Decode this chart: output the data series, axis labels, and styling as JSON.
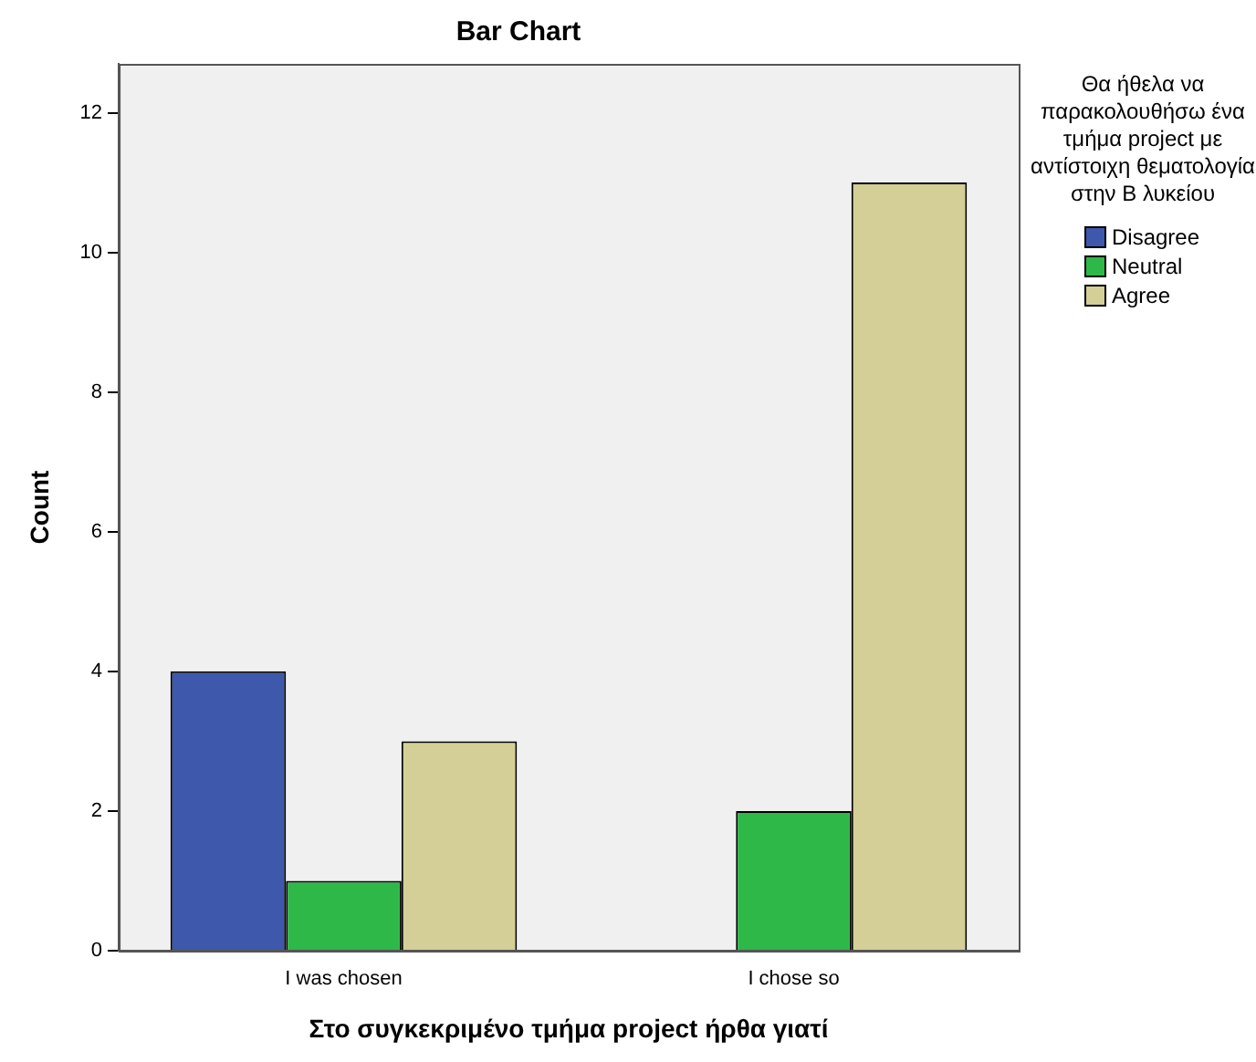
{
  "chart_data": {
    "type": "bar",
    "title": "Bar Chart",
    "xlabel": "Στο συγκεκριμένο τμήμα project ήρθα γιατί",
    "ylabel": "Count",
    "legend_title": "Θα ήθελα να παρακολουθήσω ένα τμήμα project με αντίστοιχη θεματολογία στην Β λυκείου",
    "categories": [
      "I was chosen",
      "I chose so"
    ],
    "series": [
      {
        "name": "Disagree",
        "color": "#3e58ac",
        "values": [
          4,
          null
        ]
      },
      {
        "name": "Neutral",
        "color": "#2eb848",
        "values": [
          1,
          2
        ]
      },
      {
        "name": "Agree",
        "color": "#d4cf97",
        "values": [
          3,
          11
        ]
      }
    ],
    "ylim": [
      0,
      12.7
    ],
    "yticks": [
      0,
      2,
      4,
      6,
      8,
      10,
      12
    ],
    "grid": false,
    "legend": "right"
  }
}
